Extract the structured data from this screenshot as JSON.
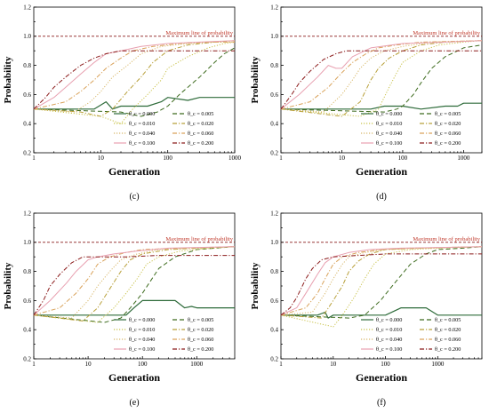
{
  "common": {
    "ylabel": "Probability",
    "xlabel": "Generation",
    "max_line_label": "Maximum line of probability",
    "legend": [
      {
        "label": "θ_c = 0.000",
        "color": "#2e6b3a",
        "dash": "solid"
      },
      {
        "label": "θ_c = 0.005",
        "color": "#3d6b1e",
        "dash": "dash"
      },
      {
        "label": "θ_c = 0.010",
        "color": "#c9c24a",
        "dash": "dot"
      },
      {
        "label": "θ_c = 0.020",
        "color": "#b8a03a",
        "dash": "dashdot"
      },
      {
        "label": "θ_c = 0.040",
        "color": "#d8b86a",
        "dash": "dot"
      },
      {
        "label": "θ_c = 0.060",
        "color": "#d9a25a",
        "dash": "dashdot"
      },
      {
        "label": "θ_c = 0.100",
        "color": "#e8a0b0",
        "dash": "solid"
      },
      {
        "label": "θ_c = 0.200",
        "color": "#8b1a1a",
        "dash": "dashdot"
      }
    ],
    "max_line_color": "#8b1a1a",
    "yticks": [
      "0.2",
      "0.4",
      "0.6",
      "0.8",
      "1.0",
      "1.2"
    ],
    "ylim": [
      0.2,
      1.2
    ],
    "max_value": 1.0
  },
  "chart_data": [
    {
      "type": "line",
      "caption": "(c)",
      "xscale": "log",
      "xlim": [
        1,
        1000
      ],
      "xticks": [
        1,
        10,
        100,
        1000
      ],
      "xtick_labels": [
        "1",
        "10",
        "100",
        "1000"
      ],
      "series": [
        {
          "name": "θ_c = 0.000",
          "x": [
            1,
            8,
            12,
            15,
            20,
            50,
            80,
            100,
            200,
            300,
            500,
            1000
          ],
          "y": [
            0.5,
            0.5,
            0.55,
            0.5,
            0.52,
            0.52,
            0.55,
            0.58,
            0.56,
            0.58,
            0.58,
            0.58
          ]
        },
        {
          "name": "θ_c = 0.005",
          "x": [
            1,
            20,
            40,
            70,
            100,
            150,
            200,
            300,
            500,
            700,
            1000
          ],
          "y": [
            0.5,
            0.48,
            0.45,
            0.48,
            0.52,
            0.6,
            0.65,
            0.72,
            0.82,
            0.88,
            0.92
          ]
        },
        {
          "name": "θ_c = 0.010",
          "x": [
            1,
            10,
            20,
            30,
            50,
            80,
            100,
            200,
            400,
            700,
            1000
          ],
          "y": [
            0.5,
            0.45,
            0.4,
            0.5,
            0.6,
            0.7,
            0.78,
            0.86,
            0.92,
            0.95,
            0.96
          ]
        },
        {
          "name": "θ_c = 0.020",
          "x": [
            1,
            5,
            10,
            15,
            25,
            40,
            60,
            100,
            200,
            500,
            1000
          ],
          "y": [
            0.5,
            0.48,
            0.45,
            0.5,
            0.62,
            0.72,
            0.82,
            0.9,
            0.94,
            0.96,
            0.97
          ]
        },
        {
          "name": "θ_c = 0.040",
          "x": [
            1,
            4,
            7,
            10,
            15,
            25,
            40,
            80,
            200,
            500,
            1000
          ],
          "y": [
            0.5,
            0.48,
            0.55,
            0.62,
            0.72,
            0.8,
            0.88,
            0.93,
            0.95,
            0.96,
            0.96
          ]
        },
        {
          "name": "θ_c = 0.060",
          "x": [
            1,
            3,
            5,
            8,
            12,
            20,
            30,
            60,
            150,
            400,
            1000
          ],
          "y": [
            0.5,
            0.55,
            0.62,
            0.7,
            0.78,
            0.85,
            0.9,
            0.93,
            0.95,
            0.96,
            0.96
          ]
        },
        {
          "name": "θ_c = 0.100",
          "x": [
            1,
            2,
            3,
            5,
            8,
            12,
            20,
            40,
            100,
            300,
            1000
          ],
          "y": [
            0.5,
            0.58,
            0.65,
            0.74,
            0.82,
            0.88,
            0.9,
            0.93,
            0.95,
            0.96,
            0.97
          ]
        },
        {
          "name": "θ_c = 0.200",
          "x": [
            1,
            1.5,
            2,
            3,
            5,
            8,
            12,
            20,
            40,
            100,
            300,
            1000
          ],
          "y": [
            0.5,
            0.58,
            0.65,
            0.72,
            0.8,
            0.85,
            0.88,
            0.9,
            0.9,
            0.9,
            0.9,
            0.9
          ]
        }
      ]
    },
    {
      "type": "line",
      "caption": "(d)",
      "xscale": "log",
      "xlim": [
        1,
        2000
      ],
      "xticks": [
        1,
        10,
        100,
        1000
      ],
      "xtick_labels": [
        "1",
        "10",
        "100",
        "1000"
      ],
      "series": [
        {
          "name": "θ_c = 0.000",
          "x": [
            1,
            30,
            50,
            100,
            200,
            500,
            800,
            1000,
            2000
          ],
          "y": [
            0.5,
            0.5,
            0.52,
            0.52,
            0.5,
            0.52,
            0.52,
            0.54,
            0.54
          ]
        },
        {
          "name": "θ_c = 0.005",
          "x": [
            1,
            50,
            80,
            100,
            150,
            200,
            300,
            500,
            800,
            1000,
            2000
          ],
          "y": [
            0.5,
            0.48,
            0.5,
            0.52,
            0.6,
            0.68,
            0.78,
            0.86,
            0.9,
            0.92,
            0.94
          ]
        },
        {
          "name": "θ_c = 0.010",
          "x": [
            1,
            20,
            40,
            60,
            80,
            100,
            200,
            400,
            1000,
            2000
          ],
          "y": [
            0.5,
            0.45,
            0.5,
            0.65,
            0.75,
            0.82,
            0.9,
            0.94,
            0.96,
            0.97
          ]
        },
        {
          "name": "θ_c = 0.020",
          "x": [
            1,
            10,
            20,
            30,
            40,
            60,
            100,
            200,
            500,
            2000
          ],
          "y": [
            0.5,
            0.45,
            0.55,
            0.7,
            0.78,
            0.85,
            0.9,
            0.94,
            0.96,
            0.97
          ]
        },
        {
          "name": "θ_c = 0.040",
          "x": [
            1,
            5,
            10,
            15,
            20,
            30,
            50,
            100,
            300,
            2000
          ],
          "y": [
            0.5,
            0.48,
            0.6,
            0.7,
            0.78,
            0.85,
            0.9,
            0.93,
            0.96,
            0.97
          ]
        },
        {
          "name": "θ_c = 0.060",
          "x": [
            1,
            3,
            6,
            10,
            15,
            25,
            40,
            80,
            200,
            2000
          ],
          "y": [
            0.5,
            0.55,
            0.65,
            0.75,
            0.82,
            0.88,
            0.92,
            0.94,
            0.96,
            0.97
          ]
        },
        {
          "name": "θ_c = 0.100",
          "x": [
            1,
            2,
            4,
            6,
            8,
            10,
            15,
            30,
            100,
            500,
            2000
          ],
          "y": [
            0.5,
            0.6,
            0.72,
            0.8,
            0.78,
            0.78,
            0.86,
            0.92,
            0.95,
            0.96,
            0.97
          ]
        },
        {
          "name": "θ_c = 0.200",
          "x": [
            1,
            1.5,
            2,
            3,
            5,
            8,
            12,
            20,
            50,
            200,
            2000
          ],
          "y": [
            0.5,
            0.6,
            0.68,
            0.76,
            0.84,
            0.88,
            0.9,
            0.9,
            0.9,
            0.9,
            0.9
          ]
        }
      ]
    },
    {
      "type": "line",
      "caption": "(e)",
      "xscale": "log",
      "xlim": [
        1,
        5000
      ],
      "xticks": [
        1,
        10,
        100,
        1000
      ],
      "xtick_labels": [
        "1",
        "10",
        "100",
        "1000"
      ],
      "series": [
        {
          "name": "θ_c = 0.000",
          "x": [
            1,
            50,
            70,
            100,
            200,
            400,
            600,
            800,
            1000,
            2000,
            5000
          ],
          "y": [
            0.5,
            0.5,
            0.55,
            0.6,
            0.6,
            0.6,
            0.55,
            0.56,
            0.55,
            0.55,
            0.55
          ]
        },
        {
          "name": "θ_c = 0.005",
          "x": [
            1,
            20,
            40,
            60,
            100,
            150,
            200,
            400,
            1000,
            5000
          ],
          "y": [
            0.5,
            0.45,
            0.48,
            0.55,
            0.65,
            0.75,
            0.82,
            0.9,
            0.95,
            0.97
          ]
        },
        {
          "name": "θ_c = 0.010",
          "x": [
            1,
            15,
            30,
            50,
            80,
            120,
            200,
            500,
            2000,
            5000
          ],
          "y": [
            0.5,
            0.45,
            0.55,
            0.65,
            0.75,
            0.85,
            0.9,
            0.94,
            0.96,
            0.97
          ]
        },
        {
          "name": "θ_c = 0.020",
          "x": [
            1,
            8,
            15,
            25,
            40,
            60,
            100,
            300,
            1000,
            5000
          ],
          "y": [
            0.5,
            0.46,
            0.55,
            0.68,
            0.8,
            0.88,
            0.92,
            0.95,
            0.96,
            0.97
          ]
        },
        {
          "name": "θ_c = 0.040",
          "x": [
            1,
            5,
            10,
            15,
            25,
            40,
            80,
            200,
            1000,
            5000
          ],
          "y": [
            0.5,
            0.48,
            0.6,
            0.7,
            0.8,
            0.88,
            0.92,
            0.95,
            0.96,
            0.97
          ]
        },
        {
          "name": "θ_c = 0.060",
          "x": [
            1,
            3,
            6,
            10,
            15,
            25,
            50,
            100,
            500,
            5000
          ],
          "y": [
            0.5,
            0.55,
            0.65,
            0.75,
            0.85,
            0.9,
            0.93,
            0.95,
            0.96,
            0.97
          ]
        },
        {
          "name": "θ_c = 0.100",
          "x": [
            1,
            2,
            4,
            6,
            10,
            15,
            30,
            80,
            300,
            5000
          ],
          "y": [
            0.5,
            0.6,
            0.72,
            0.8,
            0.88,
            0.9,
            0.92,
            0.94,
            0.96,
            0.97
          ]
        },
        {
          "name": "θ_c = 0.200",
          "x": [
            1,
            1.5,
            2,
            3,
            5,
            8,
            15,
            50,
            200,
            1000,
            5000
          ],
          "y": [
            0.5,
            0.6,
            0.7,
            0.78,
            0.86,
            0.9,
            0.9,
            0.9,
            0.91,
            0.91,
            0.91
          ]
        }
      ]
    },
    {
      "type": "line",
      "caption": "(f)",
      "xscale": "log",
      "xlim": [
        1,
        7000
      ],
      "xticks": [
        1,
        10,
        100,
        1000
      ],
      "xtick_labels": [
        "1",
        "10",
        "100",
        "1000"
      ],
      "series": [
        {
          "name": "θ_c = 0.000",
          "x": [
            1,
            5,
            7,
            8,
            10,
            20,
            100,
            200,
            300,
            600,
            1000,
            2000,
            7000
          ],
          "y": [
            0.5,
            0.5,
            0.52,
            0.48,
            0.5,
            0.5,
            0.5,
            0.55,
            0.55,
            0.55,
            0.5,
            0.5,
            0.5
          ]
        },
        {
          "name": "θ_c = 0.005",
          "x": [
            1,
            20,
            40,
            80,
            150,
            300,
            600,
            1000,
            3000,
            7000
          ],
          "y": [
            0.5,
            0.48,
            0.5,
            0.6,
            0.72,
            0.85,
            0.92,
            0.95,
            0.96,
            0.97
          ]
        },
        {
          "name": "θ_c = 0.010",
          "x": [
            1,
            10,
            15,
            25,
            40,
            60,
            100,
            300,
            1000,
            7000
          ],
          "y": [
            0.5,
            0.42,
            0.5,
            0.62,
            0.75,
            0.85,
            0.92,
            0.95,
            0.96,
            0.97
          ]
        },
        {
          "name": "θ_c = 0.020",
          "x": [
            1,
            6,
            10,
            15,
            20,
            30,
            50,
            100,
            500,
            7000
          ],
          "y": [
            0.5,
            0.48,
            0.6,
            0.7,
            0.8,
            0.87,
            0.92,
            0.95,
            0.96,
            0.97
          ]
        },
        {
          "name": "θ_c = 0.040",
          "x": [
            1,
            4,
            7,
            10,
            15,
            20,
            40,
            100,
            500,
            7000
          ],
          "y": [
            0.5,
            0.52,
            0.65,
            0.75,
            0.85,
            0.9,
            0.93,
            0.95,
            0.96,
            0.97
          ]
        },
        {
          "name": "θ_c = 0.060",
          "x": [
            1,
            3,
            5,
            7,
            10,
            15,
            30,
            80,
            300,
            7000
          ],
          "y": [
            0.5,
            0.55,
            0.65,
            0.75,
            0.85,
            0.9,
            0.93,
            0.95,
            0.96,
            0.97
          ]
        },
        {
          "name": "θ_c = 0.100",
          "x": [
            1,
            2,
            3,
            5,
            7,
            10,
            20,
            50,
            200,
            7000
          ],
          "y": [
            0.5,
            0.55,
            0.65,
            0.78,
            0.86,
            0.9,
            0.93,
            0.95,
            0.96,
            0.97
          ]
        },
        {
          "name": "θ_c = 0.200",
          "x": [
            1,
            1.5,
            2,
            3,
            4,
            6,
            10,
            30,
            100,
            1000,
            7000
          ],
          "y": [
            0.5,
            0.55,
            0.62,
            0.75,
            0.82,
            0.88,
            0.9,
            0.91,
            0.92,
            0.92,
            0.92
          ]
        }
      ]
    }
  ]
}
